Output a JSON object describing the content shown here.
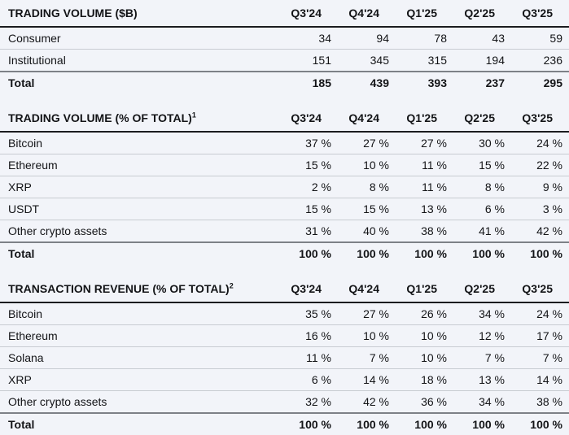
{
  "colors": {
    "background": "#f2f4f9",
    "text": "#131417",
    "header_rule": "#1b1c1f",
    "total_rule": "#7d8187",
    "row_rule": "#c8ccd2"
  },
  "chart_data": [
    {
      "type": "table",
      "title": "TRADING VOLUME ($B)",
      "title_superscript": "",
      "columns": [
        "Q3'24",
        "Q4'24",
        "Q1'25",
        "Q2'25",
        "Q3'25"
      ],
      "rows": [
        {
          "label": "Consumer",
          "values": [
            "34",
            "94",
            "78",
            "43",
            "59"
          ],
          "is_total": false
        },
        {
          "label": "Institutional",
          "values": [
            "151",
            "345",
            "315",
            "194",
            "236"
          ],
          "is_total": false
        },
        {
          "label": "Total",
          "values": [
            "185",
            "439",
            "393",
            "237",
            "295"
          ],
          "is_total": true
        }
      ]
    },
    {
      "type": "table",
      "title": "TRADING VOLUME (% OF TOTAL)",
      "title_superscript": "1",
      "columns": [
        "Q3'24",
        "Q4'24",
        "Q1'25",
        "Q2'25",
        "Q3'25"
      ],
      "rows": [
        {
          "label": "Bitcoin",
          "values": [
            "37 %",
            "27 %",
            "27 %",
            "30 %",
            "24 %"
          ],
          "is_total": false
        },
        {
          "label": "Ethereum",
          "values": [
            "15 %",
            "10 %",
            "11 %",
            "15 %",
            "22 %"
          ],
          "is_total": false
        },
        {
          "label": "XRP",
          "values": [
            "2 %",
            "8 %",
            "11 %",
            "8 %",
            "9 %"
          ],
          "is_total": false
        },
        {
          "label": "USDT",
          "values": [
            "15 %",
            "15 %",
            "13 %",
            "6 %",
            "3 %"
          ],
          "is_total": false
        },
        {
          "label": "Other crypto assets",
          "values": [
            "31 %",
            "40 %",
            "38 %",
            "41 %",
            "42 %"
          ],
          "is_total": false
        },
        {
          "label": "Total",
          "values": [
            "100 %",
            "100 %",
            "100 %",
            "100 %",
            "100 %"
          ],
          "is_total": true
        }
      ]
    },
    {
      "type": "table",
      "title": "TRANSACTION REVENUE (% OF TOTAL)",
      "title_superscript": "2",
      "columns": [
        "Q3'24",
        "Q4'24",
        "Q1'25",
        "Q2'25",
        "Q3'25"
      ],
      "rows": [
        {
          "label": "Bitcoin",
          "values": [
            "35 %",
            "27 %",
            "26 %",
            "34 %",
            "24 %"
          ],
          "is_total": false
        },
        {
          "label": "Ethereum",
          "values": [
            "16 %",
            "10 %",
            "10 %",
            "12 %",
            "17 %"
          ],
          "is_total": false
        },
        {
          "label": "Solana",
          "values": [
            "11 %",
            "7 %",
            "10 %",
            "7 %",
            "7 %"
          ],
          "is_total": false
        },
        {
          "label": "XRP",
          "values": [
            "6 %",
            "14 %",
            "18 %",
            "13 %",
            "14 %"
          ],
          "is_total": false
        },
        {
          "label": "Other crypto assets",
          "values": [
            "32 %",
            "42 %",
            "36 %",
            "34 %",
            "38 %"
          ],
          "is_total": false
        },
        {
          "label": "Total",
          "values": [
            "100 %",
            "100 %",
            "100 %",
            "100 %",
            "100 %"
          ],
          "is_total": true
        }
      ]
    }
  ]
}
